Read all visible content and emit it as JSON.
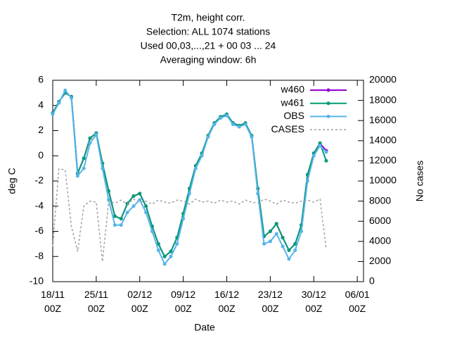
{
  "chart_data": {
    "type": "line",
    "title": [
      "T2m, height corr.",
      "Selection: ALL   1074 stations",
      "Used  00,03,...,21  + 00 03 ... 24",
      "Averaging window:  6h"
    ],
    "x_label": "Date",
    "y_label": "deg C",
    "y2_label": "No cases",
    "x": [
      "18/11 00Z",
      "19/11 00Z",
      "20/11 00Z",
      "21/11 00Z",
      "22/11 00Z",
      "23/11 00Z",
      "24/11 00Z",
      "25/11 00Z",
      "26/11 00Z",
      "27/11 00Z",
      "28/11 00Z",
      "29/11 00Z",
      "30/11 00Z",
      "01/12 00Z",
      "02/12 00Z",
      "03/12 00Z",
      "04/12 00Z",
      "05/12 00Z",
      "06/12 00Z",
      "07/12 00Z",
      "08/12 00Z",
      "09/12 00Z",
      "10/12 00Z",
      "11/12 00Z",
      "12/12 00Z",
      "13/12 00Z",
      "14/12 00Z",
      "15/12 00Z",
      "16/12 00Z",
      "17/12 00Z",
      "18/12 00Z",
      "19/12 00Z",
      "20/12 00Z",
      "21/12 00Z",
      "22/12 00Z",
      "23/12 00Z",
      "24/12 00Z",
      "25/12 00Z",
      "26/12 00Z",
      "27/12 00Z",
      "28/12 00Z",
      "29/12 00Z",
      "30/12 00Z",
      "31/12 00Z",
      "01/01 00Z"
    ],
    "xlim": [
      "18/11 00Z",
      "07/01 00Z"
    ],
    "xticks": [
      "18/11 00Z",
      "25/11 00Z",
      "02/12 00Z",
      "09/12 00Z",
      "16/12 00Z",
      "23/12 00Z",
      "30/12 00Z",
      "06/01 00Z"
    ],
    "ylim": [
      -10,
      6
    ],
    "yticks": [
      -10,
      -8,
      -6,
      -4,
      -2,
      0,
      2,
      4,
      6
    ],
    "y2lim": [
      0,
      20000
    ],
    "y2ticks": [
      0,
      2000,
      4000,
      6000,
      8000,
      10000,
      12000,
      14000,
      16000,
      18000,
      20000
    ],
    "legend": "top-right",
    "grid": false,
    "series": [
      {
        "name": "w460",
        "color": "#9400d3",
        "style": "solid",
        "values": [
          3.4,
          4.3,
          5.0,
          4.7,
          -1.4,
          -0.2,
          1.4,
          1.8,
          -0.6,
          -2.8,
          -4.8,
          -5.0,
          -3.8,
          -3.2,
          -3.0,
          -4.0,
          -5.6,
          -7.0,
          -8.0,
          -7.6,
          -6.5,
          -4.6,
          -2.6,
          -0.8,
          0.2,
          1.6,
          2.6,
          3.1,
          3.3,
          2.6,
          2.4,
          2.6,
          1.6,
          -2.6,
          -6.4,
          -6.0,
          -5.4,
          -6.5,
          -7.5,
          -7.0,
          -5.5,
          -1.5,
          0.2,
          1.0,
          0.4
        ]
      },
      {
        "name": "w461",
        "color": "#009e73",
        "style": "solid",
        "values": [
          3.4,
          4.3,
          5.0,
          4.7,
          -1.4,
          -0.2,
          1.4,
          1.8,
          -0.6,
          -2.8,
          -4.8,
          -5.0,
          -3.8,
          -3.2,
          -3.0,
          -4.0,
          -5.6,
          -7.0,
          -8.0,
          -7.6,
          -6.5,
          -4.6,
          -2.6,
          -0.8,
          0.2,
          1.6,
          2.6,
          3.1,
          3.3,
          2.6,
          2.4,
          2.6,
          1.6,
          -2.6,
          -6.4,
          -6.0,
          -5.4,
          -6.5,
          -7.5,
          -7.0,
          -5.5,
          -1.5,
          0.2,
          1.0,
          -0.4
        ]
      },
      {
        "name": "OBS",
        "color": "#56b4e9",
        "style": "solid",
        "values": [
          3.3,
          4.2,
          5.2,
          4.6,
          -1.6,
          -1.0,
          1.0,
          1.7,
          -1.0,
          -3.5,
          -5.5,
          -5.5,
          -4.5,
          -4.0,
          -3.5,
          -4.5,
          -6.0,
          -7.5,
          -8.6,
          -8.0,
          -7.0,
          -5.0,
          -3.0,
          -1.0,
          0.0,
          1.5,
          2.5,
          3.0,
          3.2,
          2.5,
          2.3,
          2.5,
          1.5,
          -3.0,
          -7.0,
          -6.8,
          -6.2,
          -7.2,
          -8.2,
          -7.5,
          -6.0,
          -2.0,
          0.0,
          0.8,
          0.3
        ]
      },
      {
        "name": "CASES",
        "color": "#a0a0a0",
        "style": "dashed",
        "axis": "y2",
        "values": [
          3500,
          11200,
          11100,
          5500,
          3000,
          7500,
          8000,
          7900,
          2000,
          8000,
          7800,
          8100,
          7700,
          8200,
          7900,
          8000,
          7700,
          8100,
          7900,
          7800,
          8100,
          8000,
          7700,
          8200,
          7900,
          8000,
          7800,
          8100,
          7900,
          8000,
          7700,
          8100,
          7900,
          7800,
          8200,
          8000,
          7700,
          8100,
          7900,
          7800,
          8000,
          8100,
          7900,
          8200,
          3200
        ]
      }
    ]
  }
}
